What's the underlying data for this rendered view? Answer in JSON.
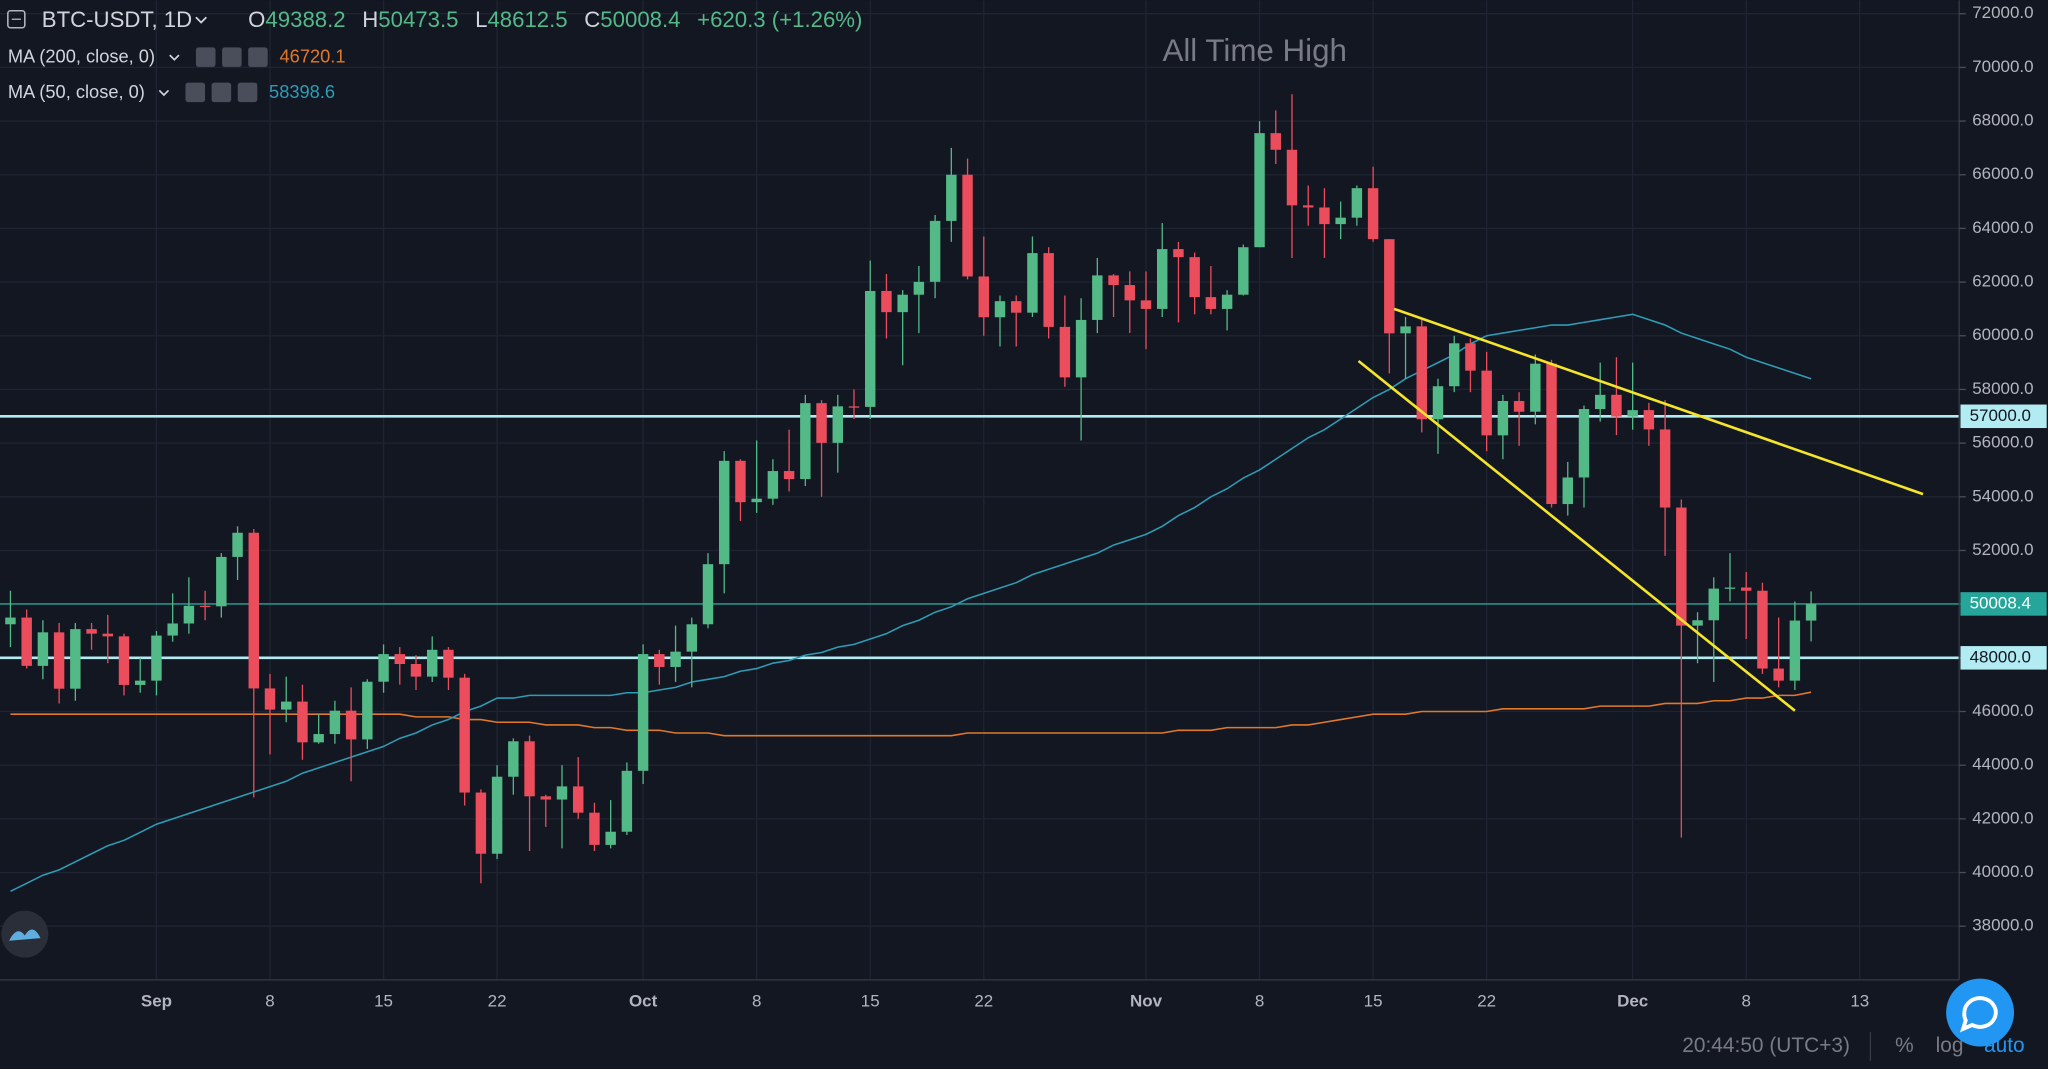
{
  "chart_data": {
    "type": "candlestick",
    "annotation": "All Time High",
    "categories": [
      null,
      null,
      null,
      null,
      null,
      null,
      null,
      null,
      null,
      "Sep",
      null,
      null,
      null,
      null,
      null,
      null,
      "8",
      null,
      null,
      null,
      null,
      null,
      null,
      "15",
      null,
      null,
      null,
      null,
      null,
      null,
      "22",
      null,
      null,
      null,
      null,
      null,
      null,
      null,
      null,
      "Oct",
      null,
      null,
      null,
      null,
      null,
      null,
      "8",
      null,
      null,
      null,
      null,
      null,
      null,
      "15",
      null,
      null,
      null,
      null,
      null,
      null,
      "22",
      null,
      null,
      null,
      null,
      null,
      null,
      null,
      null,
      null,
      "Nov",
      null,
      null,
      null,
      null,
      null,
      null,
      "8",
      null,
      null,
      null,
      null,
      null,
      null,
      "15",
      null,
      null,
      null,
      null,
      null,
      null,
      "22",
      null,
      null,
      null,
      null,
      null,
      null,
      null,
      null,
      "Dec",
      null,
      null,
      null,
      null,
      null,
      null,
      "8",
      null,
      null,
      null,
      null,
      null,
      null,
      "13",
      null,
      null,
      null,
      null,
      null
    ],
    "open": [
      49250,
      49500,
      47700,
      48950,
      46850,
      49070,
      48900,
      48800,
      46990,
      47150,
      48830,
      49280,
      49940,
      49920,
      51760,
      52660,
      46860,
      46070,
      46370,
      44850,
      45160,
      46030,
      44960,
      47110,
      48140,
      47770,
      47300,
      48300,
      47260,
      42980,
      40700,
      43570,
      44890,
      42840,
      42720,
      43210,
      42230,
      41030,
      41520,
      43790,
      48140,
      47660,
      48230,
      49250,
      51490,
      55340,
      53800,
      53930,
      54960,
      54660,
      57490,
      56010,
      57370,
      57350,
      61670,
      60880,
      61530,
      62010,
      64280,
      66000,
      62210,
      60690,
      61290,
      60860,
      63080,
      60330,
      58450,
      60590,
      62250,
      61890,
      61320,
      61000,
      63230,
      62930,
      61440,
      61000,
      61530,
      63300,
      67550,
      66930,
      64860,
      64780,
      64160,
      64400,
      65500,
      63600,
      60090,
      60350,
      56890,
      58120,
      59720,
      58700,
      56290,
      57570,
      57170,
      58960,
      53730,
      54720,
      57270,
      57800,
      56990,
      57230,
      56510,
      53600,
      49200,
      49400,
      50580,
      50620,
      50500,
      47600,
      47150,
      49388.2,
      null,
      null,
      null,
      null,
      null,
      null,
      null,
      null
    ],
    "high": [
      50500,
      49800,
      49400,
      49300,
      49300,
      49300,
      49600,
      48900,
      48000,
      49000,
      50400,
      51000,
      50500,
      51900,
      52900,
      52800,
      47400,
      47300,
      47000,
      45900,
      46400,
      46900,
      47200,
      48500,
      48400,
      48100,
      48800,
      48400,
      47400,
      43100,
      44000,
      45000,
      45100,
      42900,
      44000,
      44300,
      42600,
      42700,
      44100,
      48500,
      48300,
      49200,
      49500,
      51900,
      55700,
      55400,
      56100,
      55400,
      56500,
      57800,
      57600,
      57800,
      58000,
      62800,
      62300,
      61700,
      62600,
      64500,
      67000,
      66600,
      63700,
      61500,
      61500,
      63700,
      63300,
      61500,
      61400,
      62900,
      62300,
      62400,
      62400,
      64200,
      63500,
      63100,
      62600,
      61700,
      63400,
      68000,
      68400,
      69000,
      65600,
      65500,
      65000,
      65600,
      66300,
      63600,
      60700,
      60600,
      58400,
      60000,
      59900,
      59400,
      57800,
      57900,
      59300,
      59100,
      55300,
      57400,
      59000,
      59200,
      59000,
      57500,
      57600,
      53900,
      49700,
      51000,
      51900,
      51200,
      50800,
      49500,
      50100,
      50473.5,
      null,
      null,
      null,
      null,
      null,
      null,
      null,
      null
    ],
    "low": [
      48400,
      47600,
      47200,
      46300,
      46400,
      48300,
      47800,
      46600,
      46700,
      46600,
      48600,
      48900,
      49400,
      49500,
      50900,
      42800,
      44400,
      45600,
      44200,
      44800,
      44800,
      43400,
      44600,
      46700,
      47000,
      46800,
      47100,
      46800,
      42500,
      39600,
      40500,
      42900,
      40800,
      41700,
      40900,
      42000,
      40800,
      40900,
      41400,
      43300,
      47000,
      47100,
      46900,
      49100,
      50400,
      53100,
      53400,
      53700,
      54200,
      54400,
      54000,
      54900,
      56900,
      56900,
      59900,
      58900,
      60100,
      61400,
      63500,
      62100,
      60000,
      59600,
      59600,
      60700,
      59900,
      58100,
      56100,
      60100,
      60700,
      60100,
      59500,
      60700,
      60500,
      60800,
      60800,
      60200,
      61500,
      63300,
      66400,
      62900,
      64100,
      62900,
      63600,
      64100,
      63500,
      58600,
      58400,
      56400,
      55600,
      57900,
      57900,
      55700,
      55400,
      55900,
      56700,
      53600,
      53300,
      53600,
      56800,
      56300,
      56500,
      55900,
      51800,
      41300,
      47800,
      47100,
      50100,
      48700,
      47400,
      46900,
      46800,
      48612.5,
      null,
      null,
      null,
      null,
      null,
      null,
      null,
      null
    ],
    "close": [
      49500,
      47700,
      48950,
      46850,
      49070,
      48900,
      48800,
      46990,
      47150,
      48830,
      49280,
      49940,
      49920,
      51760,
      52660,
      46860,
      46070,
      46370,
      44850,
      45160,
      46030,
      44960,
      47110,
      48140,
      47770,
      47300,
      48300,
      47260,
      42980,
      40700,
      43570,
      44890,
      42840,
      42720,
      43210,
      42230,
      41030,
      41520,
      43790,
      48140,
      47660,
      48230,
      49250,
      51490,
      55340,
      53800,
      53930,
      54960,
      54660,
      57490,
      56010,
      57370,
      57350,
      61670,
      60880,
      61530,
      62010,
      64280,
      66000,
      62210,
      60690,
      61290,
      60860,
      63080,
      60330,
      58450,
      60590,
      62250,
      61890,
      61320,
      61000,
      63230,
      62930,
      61440,
      61000,
      61530,
      63300,
      67550,
      66930,
      64860,
      64780,
      64160,
      64400,
      65500,
      63600,
      60090,
      60350,
      56890,
      58120,
      59720,
      58700,
      56290,
      57570,
      57170,
      58960,
      53730,
      54720,
      57270,
      57800,
      56990,
      57230,
      56510,
      53600,
      49200,
      49400,
      50580,
      50620,
      50500,
      47600,
      47150,
      49388.2,
      50008.4,
      null,
      null,
      null,
      null,
      null,
      null,
      null,
      null
    ],
    "up_color": "#53b987",
    "down_color": "#eb4d5c",
    "series": [
      {
        "name": "MA (200, close, 0)",
        "color": "#e0782c",
        "last_value": 46720.1,
        "values": [
          45900,
          45900,
          45900,
          45900,
          45900,
          45900,
          45900,
          45900,
          45900,
          45900,
          45900,
          45900,
          45900,
          45900,
          45900,
          45900,
          45900,
          45900,
          45900,
          45900,
          45900,
          45900,
          45900,
          45900,
          45900,
          45800,
          45800,
          45800,
          45700,
          45700,
          45600,
          45600,
          45600,
          45500,
          45500,
          45500,
          45400,
          45400,
          45300,
          45300,
          45300,
          45200,
          45200,
          45200,
          45100,
          45100,
          45100,
          45100,
          45100,
          45100,
          45100,
          45100,
          45100,
          45100,
          45100,
          45100,
          45100,
          45100,
          45100,
          45200,
          45200,
          45200,
          45200,
          45200,
          45200,
          45200,
          45200,
          45200,
          45200,
          45200,
          45200,
          45200,
          45300,
          45300,
          45300,
          45400,
          45400,
          45400,
          45400,
          45500,
          45500,
          45600,
          45700,
          45800,
          45900,
          45900,
          45900,
          46000,
          46000,
          46000,
          46000,
          46000,
          46100,
          46100,
          46100,
          46100,
          46100,
          46100,
          46200,
          46200,
          46200,
          46200,
          46300,
          46300,
          46300,
          46400,
          46400,
          46500,
          46500,
          46600,
          46600,
          46720.1,
          null,
          null,
          null,
          null,
          null,
          null,
          null,
          null
        ]
      },
      {
        "name": "MA (50, close, 0)",
        "color": "#2f9bb5",
        "last_value": 58398.6,
        "values": [
          39300,
          39600,
          39900,
          40100,
          40400,
          40700,
          41000,
          41200,
          41500,
          41800,
          42000,
          42200,
          42400,
          42600,
          42800,
          43000,
          43200,
          43400,
          43700,
          43900,
          44100,
          44300,
          44500,
          44700,
          45000,
          45200,
          45500,
          45700,
          46000,
          46200,
          46500,
          46500,
          46600,
          46600,
          46600,
          46600,
          46600,
          46600,
          46700,
          46700,
          46800,
          46900,
          47100,
          47200,
          47300,
          47500,
          47600,
          47800,
          47900,
          48100,
          48200,
          48400,
          48500,
          48700,
          48900,
          49200,
          49400,
          49700,
          49900,
          50200,
          50400,
          50600,
          50800,
          51100,
          51300,
          51500,
          51700,
          51900,
          52200,
          52400,
          52600,
          52900,
          53300,
          53600,
          54000,
          54300,
          54700,
          55000,
          55400,
          55800,
          56200,
          56500,
          56900,
          57300,
          57700,
          58000,
          58400,
          58700,
          59000,
          59300,
          59700,
          60000,
          60100,
          60200,
          60300,
          60400,
          60400,
          60500,
          60600,
          60700,
          60800,
          60600,
          60400,
          60100,
          59900,
          59700,
          59500,
          59200,
          59000,
          58800,
          58600,
          58398.6,
          null,
          null,
          null,
          null,
          null,
          null,
          null,
          null
        ]
      }
    ],
    "ylim": [
      36000,
      72500
    ],
    "yticks": [
      {
        "value": 38000,
        "label": "38000.0"
      },
      {
        "value": 40000,
        "label": "40000.0"
      },
      {
        "value": 42000,
        "label": "42000.0"
      },
      {
        "value": 44000,
        "label": "44000.0"
      },
      {
        "value": 46000,
        "label": "46000.0"
      },
      {
        "value": 48000,
        "label": "48000.0"
      },
      {
        "value": 50000,
        "label": "50000.0"
      },
      {
        "value": 52000,
        "label": "52000.0"
      },
      {
        "value": 54000,
        "label": "54000.0"
      },
      {
        "value": 56000,
        "label": "56000.0"
      },
      {
        "value": 58000,
        "label": "58000.0"
      },
      {
        "value": 60000,
        "label": "60000.0"
      },
      {
        "value": 62000,
        "label": "62000.0"
      },
      {
        "value": 64000,
        "label": "64000.0"
      },
      {
        "value": 66000,
        "label": "66000.0"
      },
      {
        "value": 68000,
        "label": "68000.0"
      },
      {
        "value": 70000,
        "label": "70000.0"
      },
      {
        "value": 72000,
        "label": "72000.0"
      }
    ],
    "levels": [
      {
        "value": 57000,
        "label": "57000.0",
        "color": "#b2ebf2"
      },
      {
        "value": 48000,
        "label": "48000.0",
        "color": "#b2ebf2"
      }
    ],
    "last_price": {
      "value": 50008.4,
      "label": "50008.4",
      "color": "#26a69a"
    },
    "trendlines": [
      {
        "color": "#f5e52a",
        "points": [
          [
            85.3,
            61000
          ],
          [
            117.9,
            54100
          ]
        ]
      },
      {
        "color": "#f5e52a",
        "points": [
          [
            83.1,
            59060
          ],
          [
            110,
            46030
          ]
        ]
      }
    ],
    "grid": true
  },
  "header": {
    "symbol": "BTC-USDT, 1D",
    "ohlc": [
      {
        "key": "O",
        "value": 49388.2
      },
      {
        "key": "H",
        "value": 50473.5
      },
      {
        "key": "L",
        "value": 48612.5
      },
      {
        "key": "C",
        "value": 50008.4
      }
    ],
    "change": "+620.3 (+1.26%)"
  },
  "footer": {
    "time": "20:44:50 (UTC+3)",
    "percent": "%",
    "log": "log",
    "auto": "auto"
  }
}
